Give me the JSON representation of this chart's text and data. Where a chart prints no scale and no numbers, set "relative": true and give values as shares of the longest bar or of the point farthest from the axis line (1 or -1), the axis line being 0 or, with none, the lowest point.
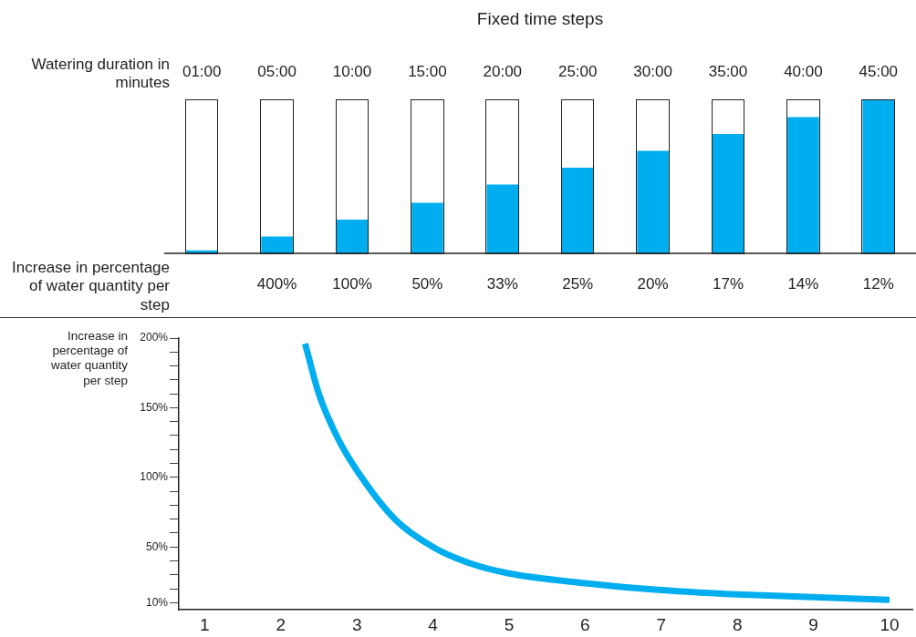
{
  "chart_data": [
    {
      "type": "bar",
      "title": "Fixed time steps",
      "xlabel": "Watering duration in minutes",
      "categories": [
        "01:00",
        "05:00",
        "10:00",
        "15:00",
        "20:00",
        "25:00",
        "30:00",
        "35:00",
        "40:00",
        "45:00"
      ],
      "series": [
        {
          "color": "#00aeef",
          "values": [
            0.02,
            0.11,
            0.22,
            0.33,
            0.45,
            0.56,
            0.67,
            0.78,
            0.89,
            1
          ]
        }
      ],
      "relative": true,
      "annotations": [
        "Increase in percentage of water quantity per step",
        "400%",
        "100%",
        "50%",
        "33%",
        "25%",
        "20%",
        "17%",
        "14%",
        "12%"
      ]
    },
    {
      "type": "line",
      "ylabel": "Increase in percentage of water quantity per step",
      "x": [
        2.32,
        2.5,
        2.75,
        3,
        3.5,
        4,
        4.5,
        5,
        6,
        7,
        8,
        9,
        10
      ],
      "values": [
        196,
        160,
        128,
        105,
        70,
        50,
        38,
        31,
        24,
        19,
        16,
        14,
        12
      ],
      "color": "#00aeef",
      "marker": "none",
      "line_style": "solid",
      "xlim": [
        0.66,
        10.3
      ],
      "xticks": [
        1,
        2,
        3,
        4,
        5,
        6,
        7,
        8,
        9,
        10
      ],
      "ylim": [
        5,
        200
      ],
      "yticks": [
        {
          "value": 10,
          "label": "10%"
        },
        {
          "value": 20,
          "label": null
        },
        {
          "value": 30,
          "label": null
        },
        {
          "value": 40,
          "label": null
        },
        {
          "value": 50,
          "label": "50%"
        },
        {
          "value": 60,
          "label": null
        },
        {
          "value": 70,
          "label": null
        },
        {
          "value": 80,
          "label": null
        },
        {
          "value": 90,
          "label": null
        },
        {
          "value": 100,
          "label": "100%"
        },
        {
          "value": 110,
          "label": null
        },
        {
          "value": 120,
          "label": null
        },
        {
          "value": 130,
          "label": null
        },
        {
          "value": 140,
          "label": null
        },
        {
          "value": 150,
          "label": "150%"
        },
        {
          "value": 160,
          "label": null
        },
        {
          "value": 170,
          "label": null
        },
        {
          "value": 180,
          "label": null
        },
        {
          "value": 190,
          "label": null
        },
        {
          "value": 200,
          "label": "200%"
        }
      ]
    }
  ]
}
